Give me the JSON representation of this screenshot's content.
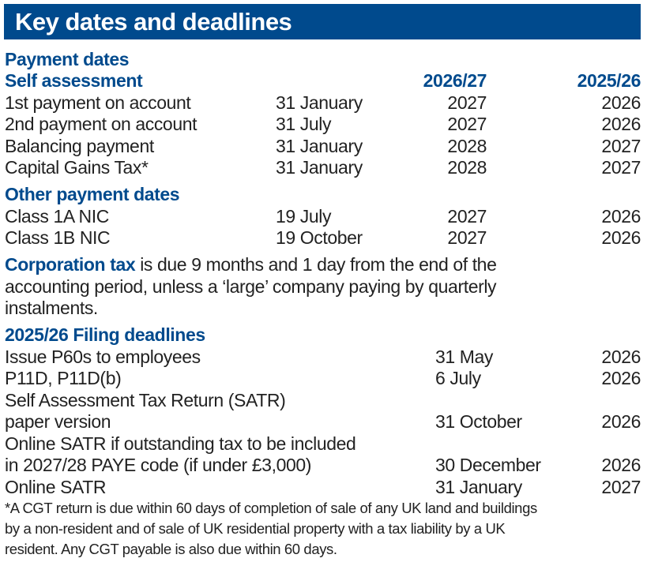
{
  "title": "Key dates and deadlines",
  "payment": {
    "heading": "Payment dates",
    "self_assessment": {
      "heading": "Self assessment",
      "col_a": "2026/27",
      "col_b": "2025/26",
      "rows": [
        {
          "label": "1st payment on account",
          "date": "31 January",
          "a": "2027",
          "b": "2026"
        },
        {
          "label": "2nd payment on account",
          "date": "31 July",
          "a": "2027",
          "b": "2026"
        },
        {
          "label": "Balancing payment",
          "date": "31 January",
          "a": "2028",
          "b": "2027"
        },
        {
          "label": "Capital Gains Tax*",
          "date": "31 January",
          "a": "2028",
          "b": "2027"
        }
      ]
    },
    "other": {
      "heading": "Other payment dates",
      "rows": [
        {
          "label": "Class 1A NIC",
          "date": "19 July",
          "a": "2027",
          "b": "2026"
        },
        {
          "label": "Class 1B NIC",
          "date": "19 October",
          "a": "2027",
          "b": "2026"
        }
      ]
    }
  },
  "corporation": {
    "heading": "Corporation tax",
    "line1": " is due 9 months and 1 day from the end of the",
    "line2": "accounting period, unless a ‘large’ company paying by quarterly",
    "line3": "instalments."
  },
  "filing": {
    "heading": "2025/26 Filing deadlines",
    "rows": [
      {
        "label": "Issue P60s to employees",
        "date": "31 May",
        "year": "2026"
      },
      {
        "label": "P11D, P11D(b)",
        "date": "6 July",
        "year": "2026"
      },
      {
        "label": "Self Assessment Tax Return (SATR)",
        "date": "",
        "year": ""
      },
      {
        "label": "paper version",
        "date": "31 October",
        "year": "2026"
      },
      {
        "label": "Online SATR if outstanding tax to be included",
        "date": "",
        "year": ""
      },
      {
        "label": "in 2027/28 PAYE code (if under £3,000)",
        "date": "30 December",
        "year": "2026"
      },
      {
        "label": "Online SATR",
        "date": "31 January",
        "year": "2027"
      }
    ]
  },
  "footnote": {
    "line1": "*A CGT return is due within 60 days of completion of sale of any UK land and buildings",
    "line2": "by a non-resident and of sale of UK residential property with a tax liability by a UK",
    "line3": "resident. Any CGT payable is also due within 60 days."
  },
  "colors": {
    "brand": "#004a8d"
  }
}
